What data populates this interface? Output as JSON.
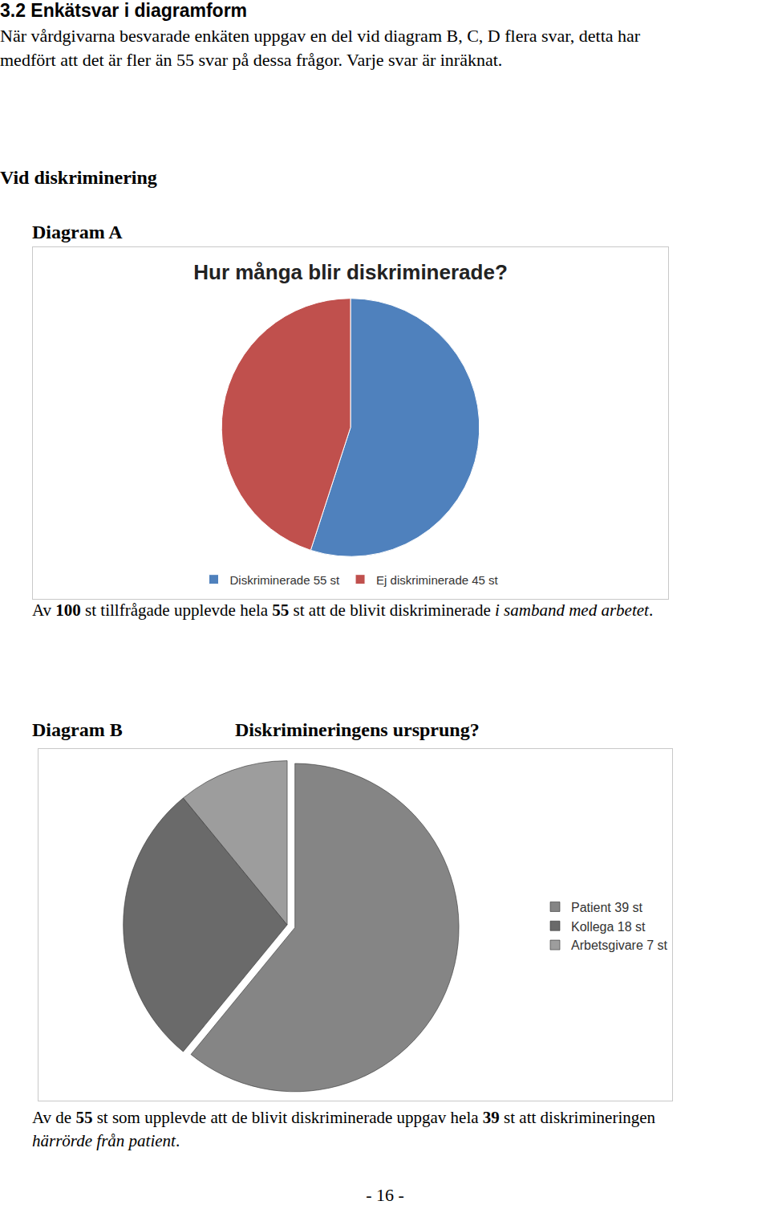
{
  "heading": "3.2 Enkätsvar i diagramform",
  "intro": [
    "När vårdgivarna besvarade enkäten uppgav en del vid diagram B, C, D flera svar, detta har",
    "medfört att det är fler än 55 svar på dessa frågor. Varje svar är inräknat."
  ],
  "section": "Vid diskriminering",
  "chart_data": [
    {
      "label": "Diagram A",
      "type": "pie",
      "title": "Hur många blir diskriminerade?",
      "categories": [
        "Diskriminerade 55 st",
        "Ej diskriminerade 45 st"
      ],
      "values": [
        55,
        45
      ],
      "colors": [
        "#4f81bd",
        "#c0504d"
      ],
      "legend": "bottom",
      "caption": [
        [
          {
            "text": "Av "
          },
          {
            "text": "100",
            "bold": true
          },
          {
            "text": " st tillfrågade upplevde hela "
          },
          {
            "text": "55",
            "bold": true
          },
          {
            "text": " st att de blivit diskriminerade "
          },
          {
            "text": "i samband med arbetet",
            "italic": true
          },
          {
            "text": "."
          }
        ]
      ]
    },
    {
      "label": "Diagram B",
      "type": "pie",
      "title": "Diskrimineringens ursprung?",
      "categories": [
        "Patient 39 st",
        "Kollega 18 st",
        "Arbetsgivare 7 st"
      ],
      "values": [
        39,
        18,
        7
      ],
      "colors": [
        "#858585",
        "#6a6a6a",
        "#9d9d9d"
      ],
      "legend": "right",
      "caption": [
        [
          {
            "text": "Av de "
          },
          {
            "text": "55",
            "bold": true
          },
          {
            "text": " st som upplevde att de blivit diskriminerade uppgav hela "
          },
          {
            "text": "39",
            "bold": true
          },
          {
            "text": " st att diskrimineringen"
          }
        ],
        [
          {
            "text": "härrörde från patient",
            "italic": true
          },
          {
            "text": "."
          }
        ]
      ]
    }
  ],
  "page_number": "- 16 -"
}
